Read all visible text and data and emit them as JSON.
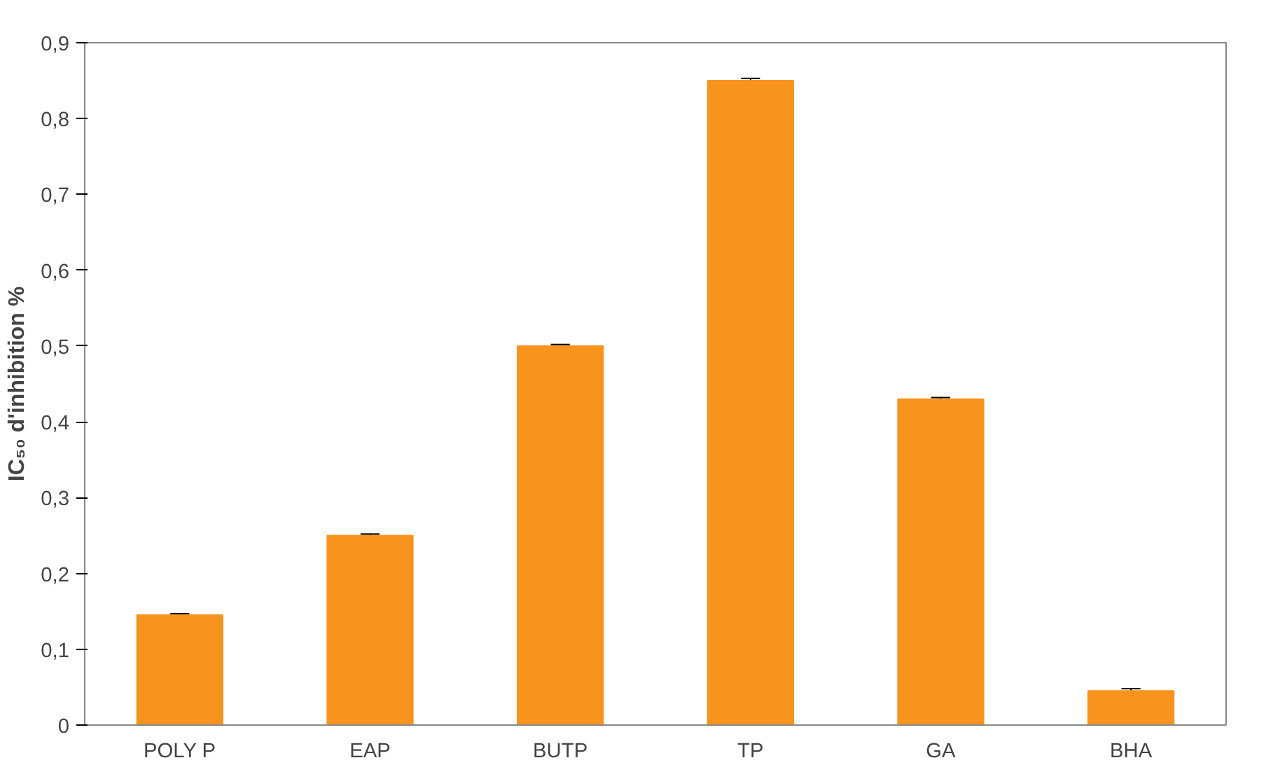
{
  "chart_data": {
    "type": "bar",
    "ylabel": "IC₅₀ d'inhibition %",
    "categories": [
      "POLY P",
      "EAP",
      "BUTP",
      "TP",
      "GA",
      "BHA"
    ],
    "values": [
      0.145,
      0.25,
      0.5,
      0.85,
      0.43,
      0.045
    ],
    "errors": [
      0.002,
      0.002,
      0.002,
      0.003,
      0.002,
      0.003
    ],
    "color": "#f7941d",
    "ylim": [
      0,
      0.9
    ],
    "yticks": [
      {
        "value": 0,
        "label": "0"
      },
      {
        "value": 0.1,
        "label": "0,1"
      },
      {
        "value": 0.2,
        "label": "0,2"
      },
      {
        "value": 0.3,
        "label": "0,3"
      },
      {
        "value": 0.4,
        "label": "0,4"
      },
      {
        "value": 0.5,
        "label": "0,5"
      },
      {
        "value": 0.6,
        "label": "0,6"
      },
      {
        "value": 0.7,
        "label": "0,7"
      },
      {
        "value": 0.8,
        "label": "0,8"
      },
      {
        "value": 0.9,
        "label": "0,9"
      }
    ],
    "grid": false
  }
}
